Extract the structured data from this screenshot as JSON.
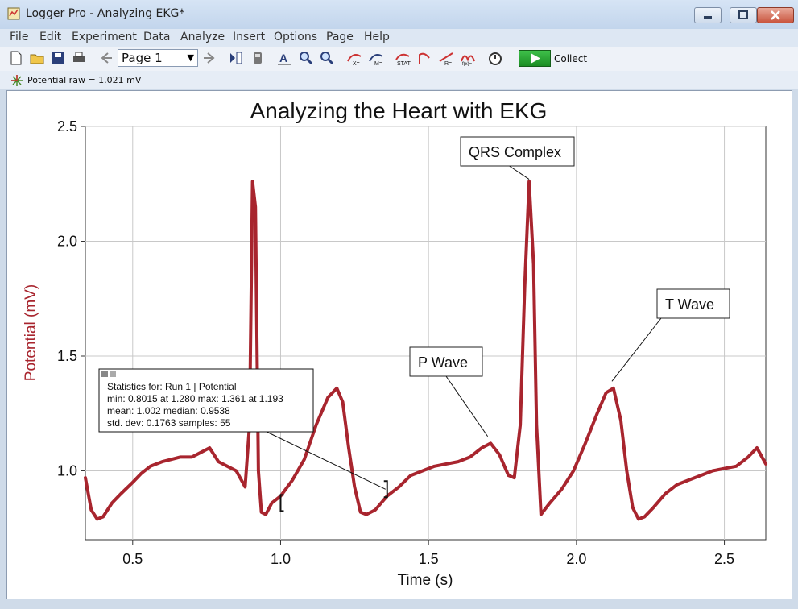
{
  "window": {
    "title": "Logger Pro - Analyzing EKG*"
  },
  "menu": [
    "File",
    "Edit",
    "Experiment",
    "Data",
    "Analyze",
    "Insert",
    "Options",
    "Page",
    "Help"
  ],
  "toolbar": {
    "page_label": "Page 1",
    "collect_label": "Collect"
  },
  "status": {
    "sensor_readout": "Potential raw = 1.021 mV"
  },
  "chart_data": {
    "type": "line",
    "title": "Analyzing the Heart with EKG",
    "xlabel": "Time (s)",
    "ylabel": "Potential (mV)",
    "xlim": [
      0.34,
      2.64
    ],
    "ylim": [
      0.7,
      2.5
    ],
    "xticks": [
      0.5,
      1.0,
      1.5,
      2.0,
      2.5
    ],
    "xtick_labels": [
      "0.5",
      "1.0",
      "1.5",
      "2.0",
      "2.5"
    ],
    "yticks": [
      1.0,
      1.5,
      2.0,
      2.5
    ],
    "ytick_labels": [
      "1.0",
      "1.5",
      "2.0",
      "2.5"
    ],
    "grid": true,
    "series_color": "#a8252e",
    "series": [
      {
        "x": [
          0.34,
          0.36,
          0.38,
          0.4,
          0.43,
          0.46,
          0.5,
          0.53,
          0.56,
          0.6,
          0.63,
          0.66,
          0.7,
          0.73,
          0.76,
          0.79,
          0.82,
          0.85,
          0.88,
          0.895,
          0.905,
          0.915,
          0.925,
          0.935,
          0.95,
          0.97,
          1.0,
          1.04,
          1.08,
          1.12,
          1.16,
          1.19,
          1.21,
          1.23,
          1.25,
          1.27,
          1.29,
          1.32,
          1.36,
          1.4,
          1.44,
          1.48,
          1.52,
          1.56,
          1.6,
          1.64,
          1.68,
          1.71,
          1.74,
          1.77,
          1.79,
          1.81,
          1.825,
          1.84,
          1.855,
          1.865,
          1.88,
          1.91,
          1.95,
          1.99,
          2.03,
          2.07,
          2.1,
          2.125,
          2.15,
          2.17,
          2.19,
          2.21,
          2.23,
          2.26,
          2.3,
          2.34,
          2.38,
          2.42,
          2.46,
          2.5,
          2.54,
          2.58,
          2.61,
          2.64
        ],
        "y": [
          0.97,
          0.83,
          0.79,
          0.8,
          0.86,
          0.9,
          0.95,
          0.99,
          1.02,
          1.04,
          1.05,
          1.06,
          1.06,
          1.08,
          1.1,
          1.04,
          1.02,
          1.0,
          0.93,
          1.2,
          2.26,
          2.15,
          1.0,
          0.82,
          0.81,
          0.86,
          0.89,
          0.96,
          1.05,
          1.2,
          1.32,
          1.36,
          1.3,
          1.1,
          0.93,
          0.82,
          0.81,
          0.83,
          0.89,
          0.93,
          0.98,
          1.0,
          1.02,
          1.03,
          1.04,
          1.06,
          1.1,
          1.12,
          1.07,
          0.98,
          0.97,
          1.2,
          1.8,
          2.26,
          1.9,
          1.2,
          0.81,
          0.86,
          0.92,
          1.0,
          1.12,
          1.25,
          1.34,
          1.36,
          1.22,
          1.0,
          0.84,
          0.79,
          0.8,
          0.84,
          0.9,
          0.94,
          0.96,
          0.98,
          1.0,
          1.01,
          1.02,
          1.06,
          1.1,
          1.03
        ]
      }
    ],
    "annotations": [
      {
        "text": "QRS Complex",
        "x": 1.84,
        "y": 2.27
      },
      {
        "text": "T Wave",
        "x": 2.12,
        "y": 1.39
      },
      {
        "text": "P Wave",
        "x": 1.7,
        "y": 1.15
      }
    ],
    "statistics": {
      "lines": [
        "Statistics for: Run 1 | Potential",
        "min: 0.8015 at 1.280 max: 1.361 at 1.193",
        "mean: 1.002 median: 0.9538",
        "std. dev: 0.1763 samples: 55"
      ],
      "range_start": 1.0,
      "range_end": 1.36
    }
  }
}
